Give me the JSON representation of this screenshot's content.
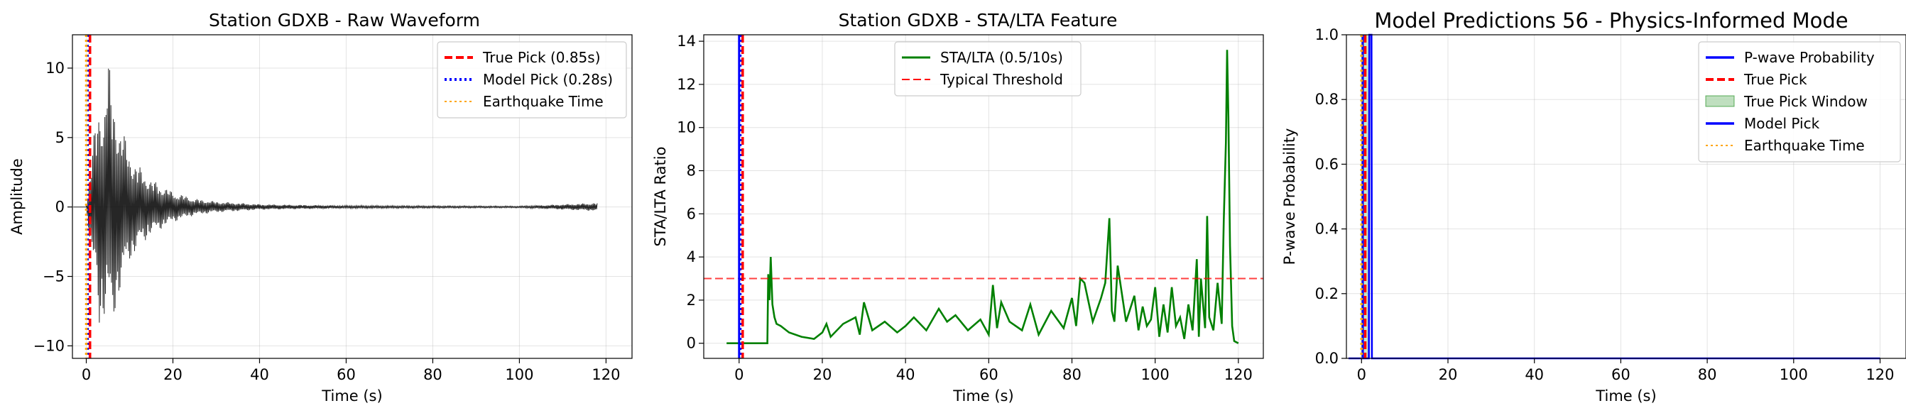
{
  "chart_data": [
    {
      "type": "line",
      "title": "Station GDXB - Raw Waveform",
      "xlabel": "Time (s)",
      "ylabel": "Amplitude",
      "xlim": [
        -3.2,
        126.0
      ],
      "ylim": [
        -10.9,
        12.4
      ],
      "xticks": [
        0,
        20,
        40,
        60,
        80,
        100,
        120
      ],
      "yticks": [
        -10,
        -5,
        0,
        5,
        10
      ],
      "grid": true,
      "legend_position": "upper right",
      "waveform_color": "#000000",
      "vlines": [
        {
          "name": "True Pick (0.85s)",
          "x": 0.85,
          "color": "#ff0000",
          "style": "dashed"
        },
        {
          "name": "Model Pick (0.28s)",
          "x": 0.28,
          "color": "#0000ff",
          "style": "dotted"
        },
        {
          "name": "Earthquake Time",
          "x": 0.0,
          "color": "#ffa500",
          "style": "dotted"
        }
      ],
      "legend": [
        "True Pick (0.85s)",
        "Model Pick (0.28s)",
        "Earthquake Time"
      ],
      "waveform_envelope": {
        "x": [
          -3,
          0,
          1,
          2,
          3,
          4,
          5,
          6,
          7,
          8,
          10,
          12,
          15,
          20,
          25,
          30,
          40,
          60,
          80,
          100,
          118
        ],
        "upper": [
          0,
          0,
          3,
          6,
          7,
          8,
          11.3,
          8,
          7,
          6,
          4,
          3,
          2,
          1.1,
          0.6,
          0.4,
          0.2,
          0.1,
          0.08,
          0.06,
          0.3
        ],
        "lower": [
          0,
          0,
          -3,
          -5,
          -9.5,
          -8,
          -7,
          -9.9,
          -7,
          -6,
          -4,
          -3,
          -2,
          -1.1,
          -0.6,
          -0.4,
          -0.2,
          -0.1,
          -0.08,
          -0.06,
          -0.3
        ]
      }
    },
    {
      "type": "line",
      "title": "Station GDXB - STA/LTA Feature",
      "xlabel": "Time (s)",
      "ylabel": "STA/LTA Ratio",
      "xlim": [
        -8.5,
        126.0
      ],
      "ylim": [
        -0.7,
        14.3
      ],
      "xticks": [
        0,
        20,
        40,
        60,
        80,
        100,
        120
      ],
      "yticks": [
        0,
        2,
        4,
        6,
        8,
        10,
        12,
        14
      ],
      "grid": true,
      "legend_position": "upper center",
      "series": [
        {
          "name": "STA/LTA (0.5/10s)",
          "color": "#008000",
          "x": [
            -3,
            6.8,
            7,
            7.3,
            7.6,
            8,
            8.5,
            9,
            10,
            12,
            15,
            18,
            20,
            21,
            22,
            25,
            28,
            29,
            30,
            32,
            35,
            38,
            40,
            42,
            45,
            48,
            50,
            52,
            55,
            58,
            60,
            61,
            62,
            63,
            65,
            68,
            70,
            72,
            75,
            78,
            80,
            81,
            82,
            83,
            85,
            87,
            88,
            89,
            89.6,
            90.2,
            91,
            93,
            95,
            96,
            97,
            98,
            99,
            100,
            101,
            102,
            103,
            104,
            105,
            106,
            107,
            108,
            109,
            110,
            110.5,
            111,
            112,
            112.5,
            113,
            114,
            115,
            116,
            116.5,
            117,
            117.3,
            117.6,
            118,
            118.5,
            119,
            120
          ],
          "values": [
            0,
            0,
            3.2,
            2.0,
            4.0,
            1.8,
            1.2,
            0.9,
            0.8,
            0.5,
            0.3,
            0.2,
            0.5,
            0.9,
            0.3,
            0.9,
            1.2,
            0.4,
            1.9,
            0.6,
            1.0,
            0.5,
            0.8,
            1.2,
            0.6,
            1.6,
            1.0,
            1.3,
            0.6,
            1.1,
            0.4,
            2.7,
            0.7,
            1.9,
            1.0,
            0.6,
            1.8,
            0.4,
            1.5,
            0.7,
            2.1,
            0.8,
            3.0,
            2.8,
            1.0,
            2.1,
            2.8,
            5.8,
            1.5,
            1.0,
            3.6,
            1.0,
            2.2,
            0.6,
            1.7,
            0.8,
            1.1,
            2.6,
            0.3,
            1.8,
            0.5,
            2.6,
            0.8,
            1.2,
            0.2,
            1.8,
            0.6,
            3.9,
            0.3,
            3.0,
            0.7,
            5.9,
            1.2,
            0.6,
            2.8,
            0.9,
            5.7,
            9.3,
            13.6,
            10.5,
            4.5,
            0.8,
            0.1,
            0
          ]
        },
        {
          "name": "Typical Threshold",
          "color": "#ff0000",
          "style": "dashed",
          "x": [
            -8.5,
            126.0
          ],
          "values": [
            3.0,
            3.0
          ]
        }
      ],
      "vlines": [
        {
          "x": 0.85,
          "color": "#ff0000",
          "style": "dashed"
        },
        {
          "x": 0.28,
          "color": "#0000ff",
          "style": "dotted"
        },
        {
          "x": 0.0,
          "color": "#0000ff",
          "style": "solid"
        }
      ],
      "legend": [
        "STA/LTA (0.5/10s)",
        "Typical Threshold"
      ]
    },
    {
      "type": "line",
      "title": "Model Predictions 56 - Physics-Informed Mode",
      "xlabel": "Time (s)",
      "ylabel": "P-wave Probability",
      "xlim": [
        -3.5,
        126.0
      ],
      "ylim": [
        0.0,
        1.0
      ],
      "xticks": [
        0,
        20,
        40,
        60,
        80,
        100,
        120
      ],
      "yticks": [
        0.0,
        0.2,
        0.4,
        0.6,
        0.8,
        1.0
      ],
      "grid": true,
      "legend_position": "upper right",
      "series": [
        {
          "name": "P-wave Probability",
          "color": "#0000ff",
          "x": [
            -3,
            1.7,
            1.8,
            2.3,
            2.4,
            120
          ],
          "values": [
            0,
            0,
            1.0,
            1.0,
            0,
            0
          ]
        }
      ],
      "vlines": [
        {
          "name": "True Pick",
          "x": 0.85,
          "color": "#ff0000",
          "style": "dashed"
        },
        {
          "name": "Model Pick",
          "x": 0.28,
          "color": "#0000ff",
          "style": "solid"
        },
        {
          "name": "Earthquake Time",
          "x": 0.0,
          "color": "#ffa500",
          "style": "dotted"
        }
      ],
      "shaded": [
        {
          "name": "True Pick Window",
          "x0": -0.15,
          "x1": 1.85,
          "color": "#008000",
          "alpha": 0.22
        }
      ],
      "legend": [
        "P-wave Probability",
        "True Pick",
        "True Pick Window",
        "Model Pick",
        "Earthquake Time"
      ]
    }
  ]
}
